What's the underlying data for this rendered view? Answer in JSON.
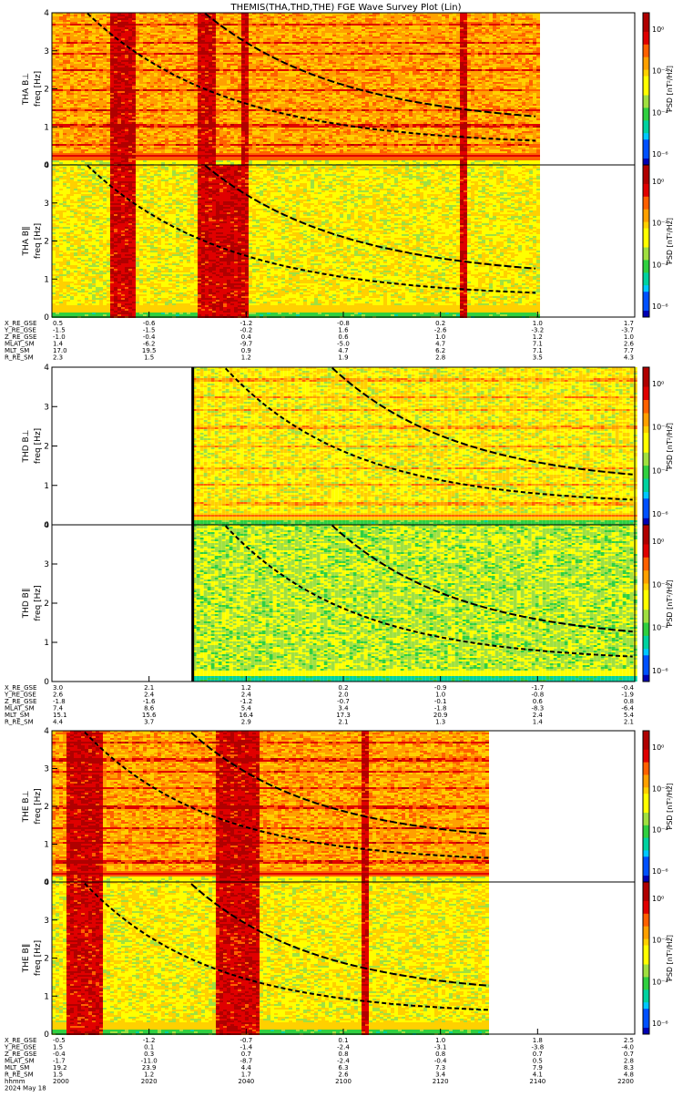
{
  "title": "THEMIS(THA,THD,THE) FGE Wave Survey Plot (Lin)",
  "colorbar": {
    "label": "PSD [nT²/Hz]",
    "ticks": [
      "10⁰",
      "10⁻²",
      "10⁻⁴",
      "10⁻⁶"
    ]
  },
  "colors": {
    "axis": "#000000",
    "background": "#ffffff"
  },
  "groups": [
    {
      "probe": "THA",
      "panels": [
        {
          "id": "tha-bl",
          "label": "THA B⊥",
          "ylabel": "freq [Hz]"
        },
        {
          "id": "tha-bpar",
          "label": "THA B∥",
          "ylabel": "freq [Hz]"
        }
      ],
      "ephemeris": {
        "labels": [
          "X_RE_GSE",
          "Y_RE_GSE",
          "Z_RE_GSE",
          "MLAT_SM",
          "MLT_SM",
          "R_RE_SM"
        ],
        "rows": [
          [
            "0.5",
            "-0.6",
            "-1.2",
            "-0.8",
            "0.2",
            "1.0",
            "1.7"
          ],
          [
            "-1.5",
            "-1.5",
            "-0.2",
            "1.6",
            "-2.6",
            "-3.2",
            "-3.7"
          ],
          [
            "-1.0",
            "-0.4",
            "0.4",
            "0.6",
            "1.0",
            "1.2",
            "1.0"
          ],
          [
            "1.4",
            "-6.2",
            "-9.7",
            "-5.0",
            "4.7",
            "7.1",
            "2.6"
          ],
          [
            "17.0",
            "19.5",
            "0.9",
            "4.7",
            "6.2",
            "7.1",
            "7.7"
          ],
          [
            "2.3",
            "1.5",
            "1.2",
            "1.9",
            "2.8",
            "3.5",
            "4.3"
          ]
        ]
      }
    },
    {
      "probe": "THD",
      "panels": [
        {
          "id": "thd-bl",
          "label": "THD B⊥",
          "ylabel": "freq [Hz]"
        },
        {
          "id": "thd-bpar",
          "label": "THD B∥",
          "ylabel": "freq [Hz]"
        }
      ],
      "ephemeris": {
        "labels": [
          "X_RE_GSE",
          "Y_RE_GSE",
          "Z_RE_GSE",
          "MLAT_SM",
          "MLT_SM",
          "R_RE_SM"
        ],
        "rows": [
          [
            "3.0",
            "2.1",
            "1.2",
            "0.2",
            "-0.9",
            "-1.7",
            "-0.4"
          ],
          [
            "2.6",
            "2.4",
            "2.4",
            "2.0",
            "1.0",
            "-0.8",
            "-1.9"
          ],
          [
            "-1.8",
            "-1.6",
            "-1.2",
            "-0.7",
            "-0.1",
            "0.6",
            "0.8"
          ],
          [
            "7.4",
            "8.6",
            "5.4",
            "3.4",
            "-1.8",
            "-8.3",
            "-6.4"
          ],
          [
            "15.1",
            "15.6",
            "16.4",
            "17.3",
            "20.9",
            "2.4",
            "5.4"
          ],
          [
            "4.4",
            "3.7",
            "2.9",
            "2.1",
            "1.3",
            "1.4",
            "2.1"
          ]
        ]
      }
    },
    {
      "probe": "THE",
      "panels": [
        {
          "id": "the-bl",
          "label": "THE B⊥",
          "ylabel": "freq [Hz]"
        },
        {
          "id": "the-bpar",
          "label": "THE B∥",
          "ylabel": "freq [Hz]"
        }
      ],
      "ephemeris": {
        "labels": [
          "X_RE_GSE",
          "Y_RE_GSE",
          "Z_RE_GSE",
          "MLAT_SM",
          "MLT_SM",
          "R_RE_SM"
        ],
        "rows": [
          [
            "-0.5",
            "-1.2",
            "-0.7",
            "0.1",
            "1.0",
            "1.8",
            "2.5"
          ],
          [
            "1.5",
            "0.1",
            "-1.4",
            "-2.4",
            "-3.1",
            "-3.8",
            "-4.0"
          ],
          [
            "-0.4",
            "0.3",
            "0.7",
            "0.8",
            "0.8",
            "0.7",
            "0.7"
          ],
          [
            "-1.7",
            "-11.0",
            "-8.7",
            "-2.4",
            "-0.4",
            "0.5",
            "2.8"
          ],
          [
            "19.2",
            "23.9",
            "4.4",
            "6.3",
            "7.3",
            "7.9",
            "8.3"
          ],
          [
            "1.5",
            "1.2",
            "1.7",
            "2.6",
            "3.4",
            "4.1",
            "4.8"
          ]
        ]
      },
      "time_label": "hhmm",
      "date_label": "2024 May 18",
      "time_ticks": [
        "2000",
        "2020",
        "2040",
        "2100",
        "2120",
        "2140",
        "2200"
      ]
    }
  ],
  "chart_data": {
    "type": "heatmap",
    "title": "THEMIS(THA,THD,THE) FGE Wave Survey Plot (Lin)",
    "xlabel": "hhmm",
    "ylabel": "freq [Hz]",
    "ylim": [
      0,
      4
    ],
    "yticks": [
      0,
      1,
      2,
      3,
      4
    ],
    "xticks": [
      "2000",
      "2020",
      "2040",
      "2100",
      "2120",
      "2140",
      "2200"
    ],
    "colorscale": "rainbow, log",
    "colorbar_label": "PSD [nT²/Hz]",
    "panels": [
      {
        "name": "THA B⊥",
        "data_range": [
          "2000",
          "2140"
        ],
        "level": "high",
        "bursts": [
          [
            "2012",
            "2017"
          ],
          [
            "2030",
            "2033"
          ],
          [
            "2039",
            "2040"
          ],
          [
            "2124",
            "2125"
          ]
        ]
      },
      {
        "name": "THA B∥",
        "data_range": [
          "2000",
          "2140"
        ],
        "level": "medium",
        "bursts": [
          [
            "2012",
            "2017"
          ],
          [
            "2030",
            "2040"
          ],
          [
            "2124",
            "2125"
          ]
        ]
      },
      {
        "name": "THD B⊥",
        "data_range": [
          "2029",
          "2200"
        ],
        "level": "medium",
        "bursts": []
      },
      {
        "name": "THD B∥",
        "data_range": [
          "2029",
          "2200"
        ],
        "level": "low",
        "bursts": []
      },
      {
        "name": "THE B⊥",
        "data_range": [
          "2000",
          "2130"
        ],
        "level": "high",
        "bursts": [
          [
            "2003",
            "2010"
          ],
          [
            "2034",
            "2042"
          ],
          [
            "2104",
            "2105"
          ]
        ]
      },
      {
        "name": "THE B∥",
        "data_range": [
          "2000",
          "2130"
        ],
        "level": "medium",
        "bursts": [
          [
            "2003",
            "2010"
          ],
          [
            "2034",
            "2042"
          ],
          [
            "2104",
            "2105"
          ]
        ]
      }
    ]
  }
}
